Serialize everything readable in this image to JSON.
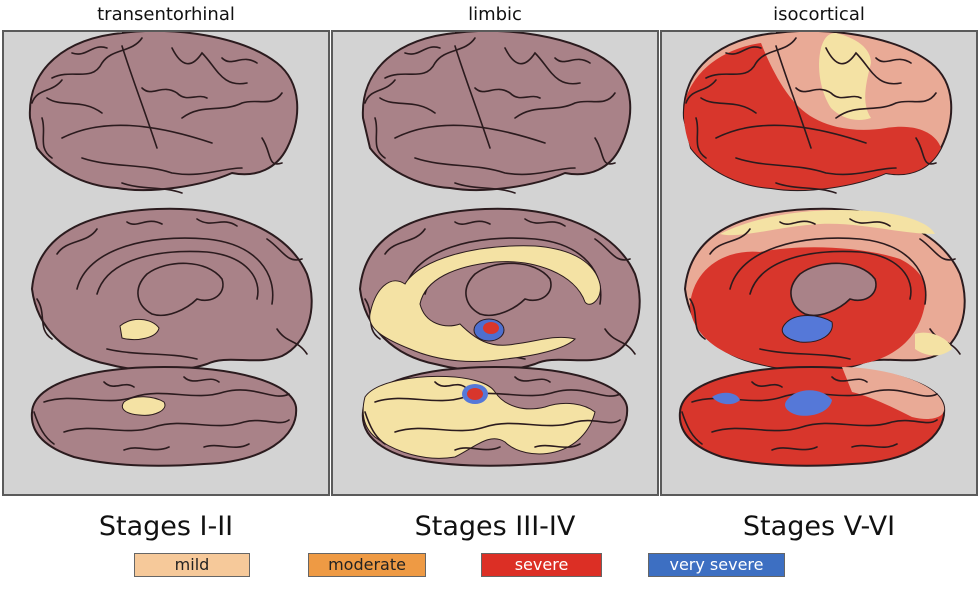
{
  "columns": [
    {
      "title": "transentorhinal",
      "stage": "Stages I-II"
    },
    {
      "title": "limbic",
      "stage": "Stages III-IV"
    },
    {
      "title": "isocortical",
      "stage": "Stages V-VI"
    }
  ],
  "legend": [
    {
      "label": "mild",
      "color": "#f6c99a",
      "text_color": "#222222"
    },
    {
      "label": "moderate",
      "color": "#ee9a44",
      "text_color": "#222222"
    },
    {
      "label": "severe",
      "color": "#dc2f25",
      "text_color": "#ffffff"
    },
    {
      "label": "very severe",
      "color": "#3d6fc2",
      "text_color": "#ffffff"
    }
  ],
  "colors": {
    "brain": "#a98288",
    "sulcus": "#2b1b1e",
    "panel": "#d3d3d3",
    "pale_yellow": "#f4e2a4",
    "pink": "#e9aa96",
    "red": "#d8362c",
    "blue": "#5578d8"
  }
}
